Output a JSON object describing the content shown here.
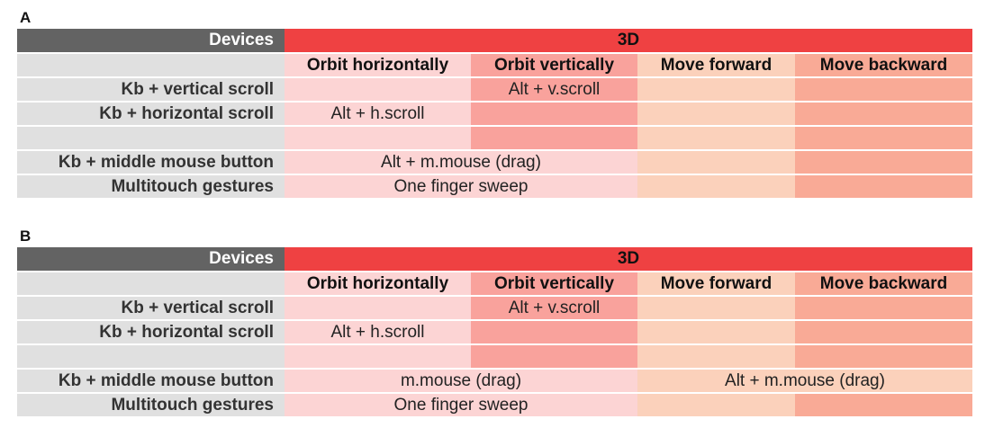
{
  "panels": [
    {
      "label": "A",
      "devices_header": "Devices",
      "mode_header": "3D",
      "columns": [
        "Orbit horizontally",
        "Orbit vertically",
        "Move forward",
        "Move backward"
      ],
      "rows": [
        {
          "device": "Kb + vertical scroll",
          "cells": [
            "",
            "Alt + v.scroll",
            "",
            ""
          ]
        },
        {
          "device": "Kb + horizontal scroll",
          "cells": [
            "Alt + h.scroll",
            "",
            "",
            ""
          ]
        },
        {
          "device": "",
          "cells": [
            "",
            "",
            "",
            ""
          ]
        },
        {
          "device": "Kb + middle mouse button",
          "merged_left": "Alt + m.mouse (drag)",
          "cells_right": [
            "",
            ""
          ]
        },
        {
          "device": "Multitouch gestures",
          "merged_left": "One finger sweep",
          "cells_right": [
            "",
            ""
          ]
        }
      ]
    },
    {
      "label": "B",
      "devices_header": "Devices",
      "mode_header": "3D",
      "columns": [
        "Orbit horizontally",
        "Orbit vertically",
        "Move forward",
        "Move backward"
      ],
      "rows": [
        {
          "device": "Kb + vertical scroll",
          "cells": [
            "",
            "Alt + v.scroll",
            "",
            ""
          ]
        },
        {
          "device": "Kb + horizontal scroll",
          "cells": [
            "Alt + h.scroll",
            "",
            "",
            ""
          ]
        },
        {
          "device": "",
          "cells": [
            "",
            "",
            "",
            ""
          ]
        },
        {
          "device": "Kb + middle mouse button",
          "merged_left": "m.mouse (drag)",
          "merged_right": "Alt + m.mouse (drag)"
        },
        {
          "device": "Multitouch gestures",
          "merged_left": "One finger sweep",
          "cells_right": [
            "",
            ""
          ]
        }
      ]
    }
  ],
  "colors": {
    "devices_header_bg": "#636363",
    "mode_header_bg": "#ef4142",
    "row_header_bg": "#e0e0e0",
    "orbit_horizontally_bg": "#fcd4d4",
    "orbit_vertically_bg": "#f9a29c",
    "move_forward_bg": "#fbd1bb",
    "move_backward_bg": "#f9aa96"
  }
}
